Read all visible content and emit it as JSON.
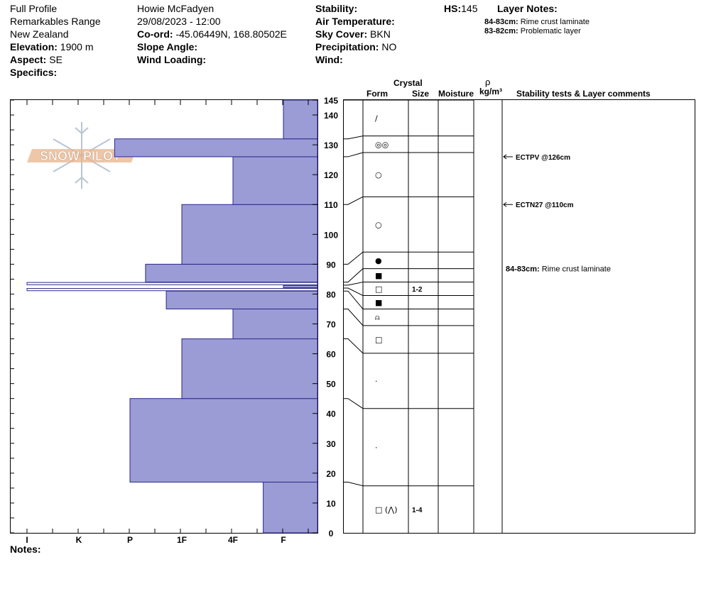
{
  "header": {
    "profile_type": "Full Profile",
    "location": "Remarkables Range",
    "region": "New Zealand",
    "elevation_label": "Elevation:",
    "elevation": "1900 m",
    "aspect_label": "Aspect:",
    "aspect": "SE",
    "specifics_label": "Specifics:",
    "observer": "Howie McFadyen",
    "datetime": "29/08/2023 - 12:00",
    "coord_label": "Co-ord:",
    "coord": "-45.06449N, 168.80502E",
    "slope_label": "Slope Angle:",
    "wind_loading_label": "Wind Loading:",
    "stability_label": "Stability:",
    "air_temp_label": "Air Temperature:",
    "sky_label": "Sky Cover:",
    "sky": "BKN",
    "precip_label": "Precipitation:",
    "precip": "NO",
    "wind_label": "Wind:",
    "hs_label": "HS:",
    "hs": "145",
    "layer_notes_label": "Layer Notes:",
    "layer_notes": [
      {
        "range": "84-83cm:",
        "text": "Rime crust laminate"
      },
      {
        "range": "83-82cm:",
        "text": "Problematic layer"
      }
    ]
  },
  "columns": {
    "crystal": "Crystal",
    "form": "Form",
    "size": "Size",
    "moisture": "Moisture",
    "rho": "ρ",
    "density_unit": "kg/m³",
    "comments": "Stability tests & Layer comments"
  },
  "notes_label": "Notes:",
  "logo_text": "SNOW PILOT",
  "colors": {
    "hardness_fill": "#9b9bd6",
    "hardness_stroke": "#2a2a8a"
  },
  "chart_data": {
    "type": "bar",
    "orientation": "horizontal",
    "ylabel": "",
    "ylim": [
      0,
      145
    ],
    "y_ticks": [
      0,
      10,
      20,
      30,
      40,
      50,
      60,
      70,
      80,
      90,
      100,
      110,
      120,
      130,
      140,
      145
    ],
    "hardness_scale": [
      "I",
      "K",
      "P",
      "1F",
      "4F",
      "F"
    ],
    "layers": [
      {
        "bottom": 0,
        "top": 17,
        "hardness": 4.6,
        "form": "FC ▽",
        "grain": "□ (⋀)",
        "size": "1-4"
      },
      {
        "bottom": 17,
        "top": 45,
        "hardness": 2.0,
        "form": "RGxf",
        "grain": "·",
        "size": ""
      },
      {
        "bottom": 45,
        "top": 65,
        "hardness": 3.0,
        "form": "RG",
        "grain": "·",
        "size": ""
      },
      {
        "bottom": 65,
        "top": 75,
        "hardness": 4.0,
        "form": "FC",
        "grain": "□",
        "size": ""
      },
      {
        "bottom": 75,
        "top": 81,
        "hardness": 2.7,
        "form": "FCxr",
        "grain": "⍝",
        "size": ""
      },
      {
        "bottom": 81,
        "top": 82,
        "hardness": 0.0,
        "form": "MFcr",
        "grain": "■",
        "size": ""
      },
      {
        "bottom": 82,
        "top": 83,
        "hardness": 5.0,
        "form": "FC",
        "grain": "□",
        "size": "1-2"
      },
      {
        "bottom": 83,
        "top": 84,
        "hardness": 0.0,
        "form": "MFcr",
        "grain": "■",
        "size": ""
      },
      {
        "bottom": 84,
        "top": 90,
        "hardness": 2.3,
        "form": "IF",
        "grain": "●",
        "size": ""
      },
      {
        "bottom": 90,
        "top": 110,
        "hardness": 3.0,
        "form": "DF",
        "grain": "○",
        "size": ""
      },
      {
        "bottom": 110,
        "top": 126,
        "hardness": 4.0,
        "form": "DF",
        "grain": "○",
        "size": ""
      },
      {
        "bottom": 126,
        "top": 132,
        "hardness": 1.7,
        "form": "PPgp",
        "grain": "◎◎",
        "size": ""
      },
      {
        "bottom": 132,
        "top": 145,
        "hardness": 5.0,
        "form": "PP",
        "grain": "∕",
        "size": ""
      }
    ],
    "stability_tests": [
      {
        "depth": 126,
        "label": "ECTPV @126cm"
      },
      {
        "depth": 110,
        "label": "ECTN27 @110cm"
      }
    ],
    "layer_comments": [
      {
        "depth": 83.5,
        "range": "84-83cm:",
        "text": "Rime crust laminate"
      }
    ]
  }
}
